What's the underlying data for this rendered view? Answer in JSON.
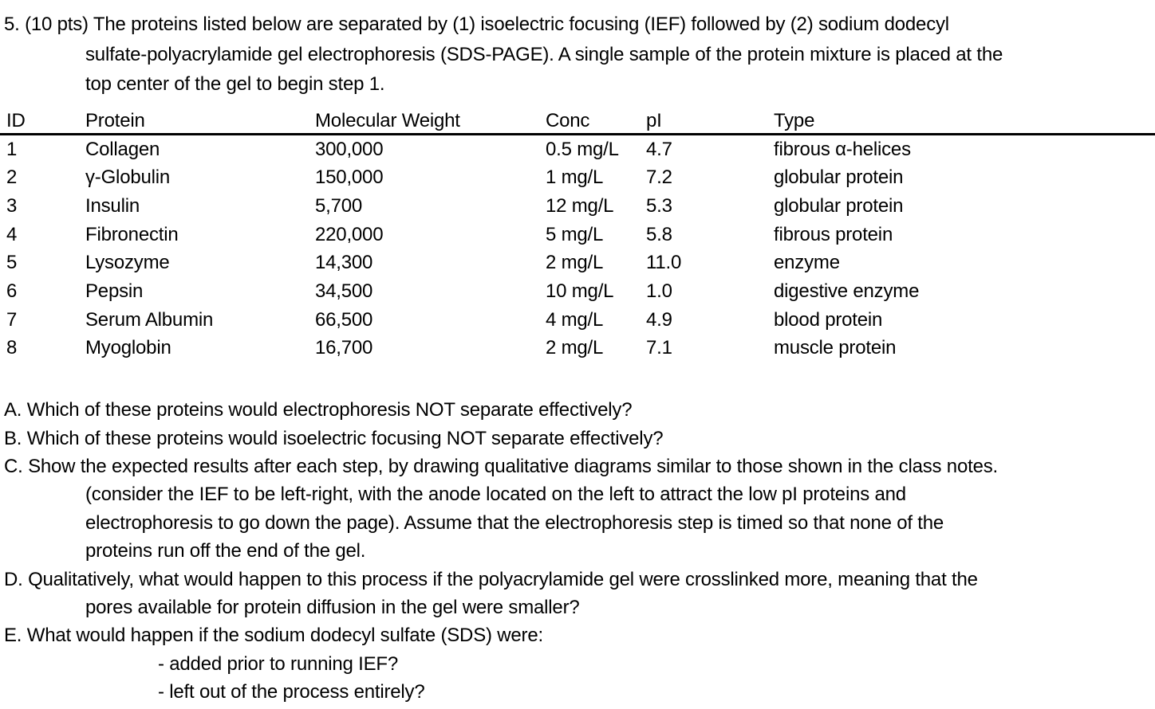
{
  "intro": {
    "lines": [
      "5. (10 pts) The proteins listed below are separated by (1) isoelectric focusing (IEF) followed by (2) sodium dodecyl",
      "sulfate-polyacrylamide gel electrophoresis (SDS-PAGE). A single sample of the protein mixture is placed at the",
      "top center of the gel to begin step 1."
    ]
  },
  "table": {
    "headers": [
      "ID",
      "Protein",
      "Molecular Weight",
      "Conc",
      "pI",
      "Type"
    ],
    "rows": [
      {
        "id": "1",
        "protein": "Collagen",
        "mw": "300,000",
        "conc": "0.5 mg/L",
        "pi": "4.7",
        "type": "fibrous α-helices"
      },
      {
        "id": "2",
        "protein": "γ-Globulin",
        "mw": "150,000",
        "conc": "1 mg/L",
        "pi": "7.2",
        "type": "globular protein"
      },
      {
        "id": "3",
        "protein": "Insulin",
        "mw": "5,700",
        "conc": "12 mg/L",
        "pi": "5.3",
        "type": "globular protein"
      },
      {
        "id": "4",
        "protein": "Fibronectin",
        "mw": "220,000",
        "conc": "5 mg/L",
        "pi": "5.8",
        "type": "fibrous protein"
      },
      {
        "id": "5",
        "protein": "Lysozyme",
        "mw": "14,300",
        "conc": "2 mg/L",
        "pi": "11.0",
        "type": "enzyme"
      },
      {
        "id": "6",
        "protein": "Pepsin",
        "mw": "34,500",
        "conc": "10 mg/L",
        "pi": "1.0",
        "type": "digestive enzyme"
      },
      {
        "id": "7",
        "protein": "Serum Albumin",
        "mw": "66,500",
        "conc": "4 mg/L",
        "pi": "4.9",
        "type": "blood protein"
      },
      {
        "id": "8",
        "protein": "Myoglobin",
        "mw": "16,700",
        "conc": "2 mg/L",
        "pi": "7.1",
        "type": "muscle protein"
      }
    ]
  },
  "questions": {
    "lines": [
      "A. Which of these proteins would electrophoresis NOT separate effectively?",
      "B. Which of these proteins would isoelectric focusing NOT separate effectively?",
      "C. Show the expected results after each step, by drawing qualitative diagrams similar to those shown in the class notes.",
      "(consider the IEF to be left-right, with the anode located on the left to attract the low pI proteins and",
      "electrophoresis to go down the page). Assume that the electrophoresis step is timed so that none of the",
      "proteins run off the end of the gel.",
      "D. Qualitatively, what would happen to this process if the polyacrylamide gel were crosslinked more, meaning that the",
      "pores available for protein diffusion in the gel were smaller?",
      "E. What would happen if the sodium dodecyl sulfate (SDS) were:",
      "- added prior to running IEF?",
      "- left out of the process entirely?"
    ]
  },
  "colors": {
    "text": "#000000",
    "background": "#ffffff"
  }
}
